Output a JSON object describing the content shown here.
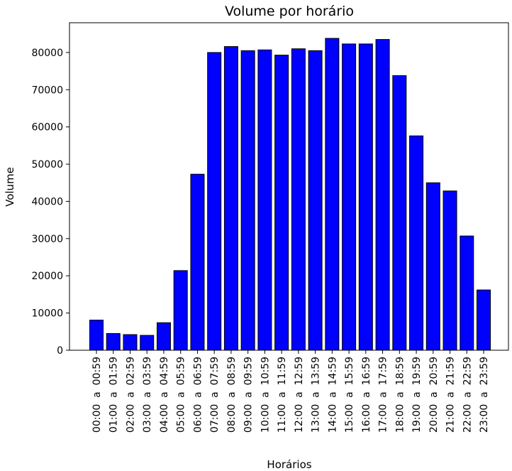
{
  "chart_data": {
    "type": "bar",
    "title": "Volume por horário",
    "xlabel": "Horários",
    "ylabel": "Volume",
    "ylim": [
      0,
      88000
    ],
    "yticks": [
      0,
      10000,
      20000,
      30000,
      40000,
      50000,
      60000,
      70000,
      80000
    ],
    "grid": false,
    "bar_color": "#0000ff",
    "edge_color": "#000000",
    "categories": [
      "00:00  a  00:59",
      "01:00  a  01:59",
      "02:00  a  02:59",
      "03:00  a  03:59",
      "04:00  a  04:59",
      "05:00  a  05:59",
      "06:00  a  06:59",
      "07:00  a  07:59",
      "08:00  a  08:59",
      "09:00  a  09:59",
      "10:00  a  10:59",
      "11:00  a  11:59",
      "12:00  a  12:59",
      "13:00  a  13:59",
      "14:00  a  14:59",
      "15:00  a  15:59",
      "16:00  a  16:59",
      "17:00  a  17:59",
      "18:00  a  18:59",
      "19:00  a  19:59",
      "20:00  a  20:59",
      "21:00  a  21:59",
      "22:00  a  22:59",
      "23:00  a  23:59"
    ],
    "values": [
      8100,
      4500,
      4200,
      4000,
      7400,
      21400,
      47300,
      80000,
      81600,
      80500,
      80700,
      79300,
      81000,
      80500,
      83800,
      82300,
      82300,
      83500,
      73800,
      57600,
      45000,
      42800,
      30700,
      16200
    ]
  }
}
